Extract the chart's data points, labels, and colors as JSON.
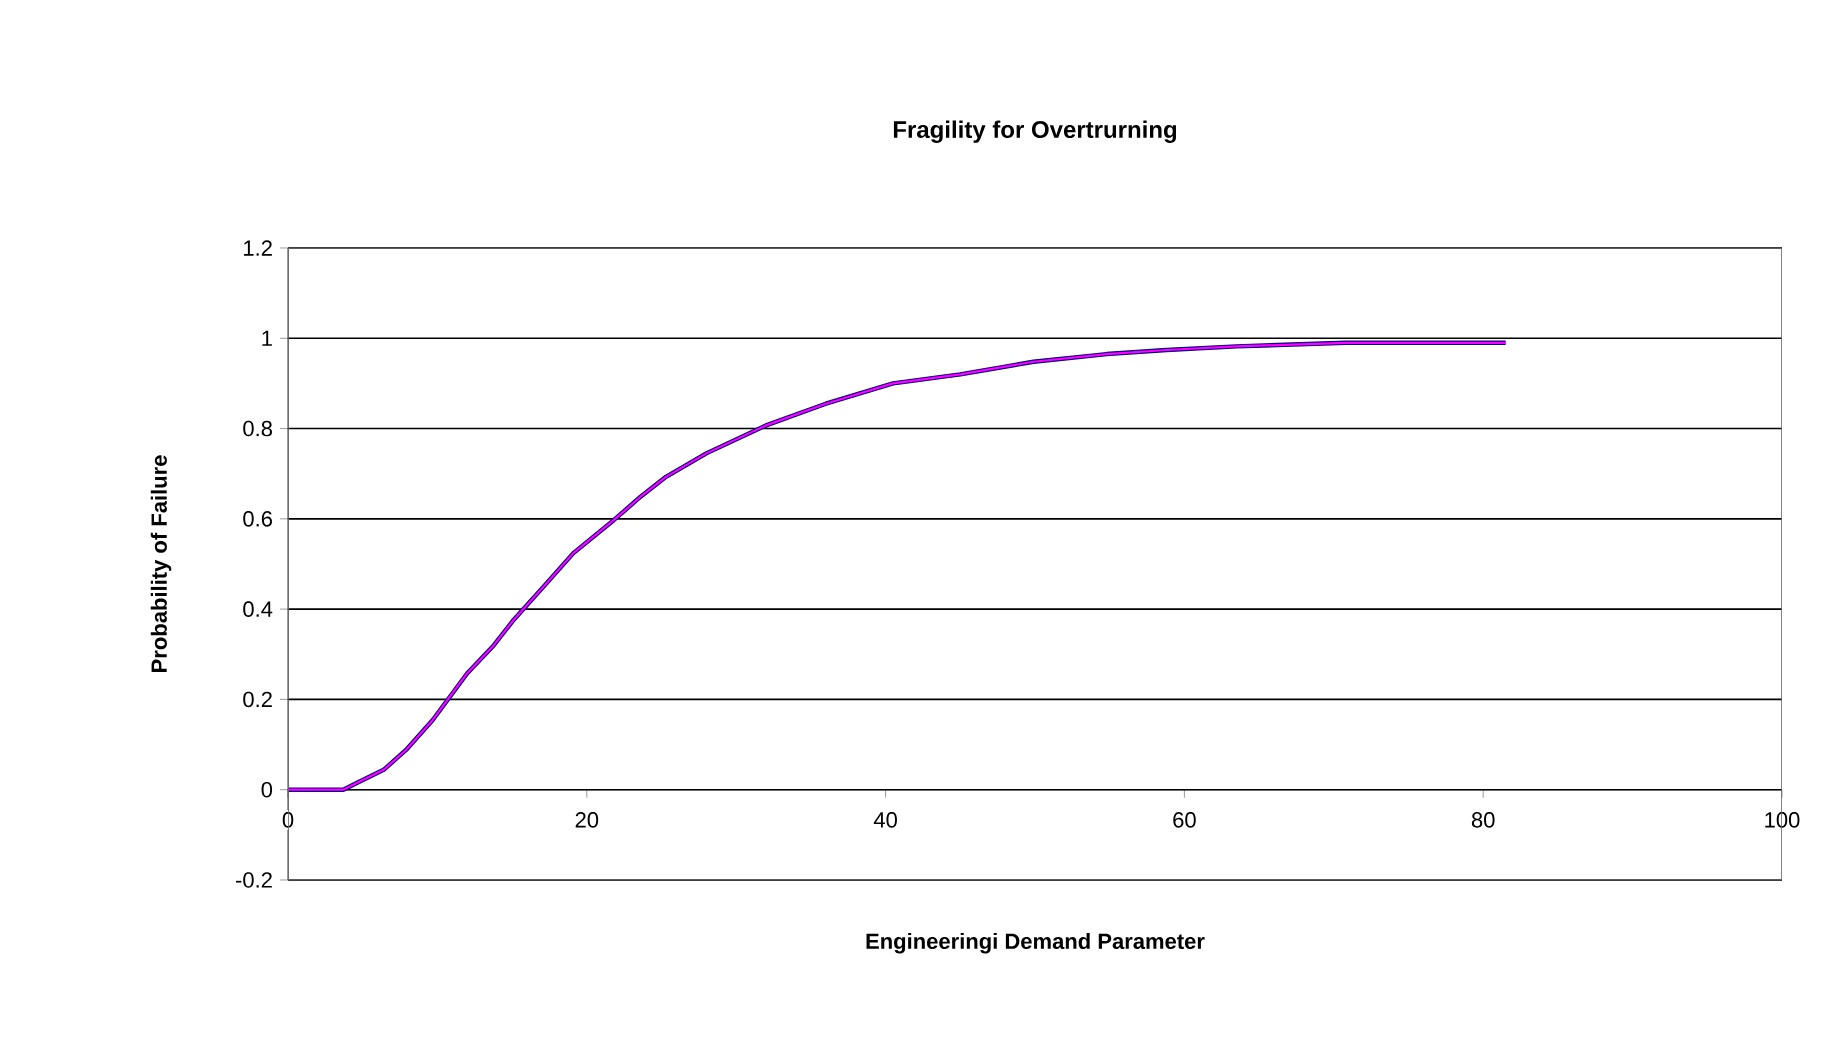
{
  "chart_data": {
    "type": "line",
    "title": "Fragility for Overtrurning",
    "xlabel": "Engineeringi Demand Parameter",
    "ylabel": "Probability of Failure",
    "xlim": [
      0,
      100
    ],
    "xticks": [
      0,
      20,
      40,
      60,
      80,
      100
    ],
    "ylim": [
      -0.2,
      1.2
    ],
    "yticks": [
      -0.2,
      0,
      0.2,
      0.4,
      0.6,
      0.8,
      1,
      1.2
    ],
    "grid": "y",
    "x": [
      0,
      3.7,
      4.6,
      6.4,
      7.9,
      9.7,
      12,
      13.7,
      15.1,
      17.3,
      19.1,
      21.8,
      23.6,
      25.3,
      28,
      32,
      36,
      40.5,
      45,
      49.9,
      54.8,
      58.8,
      63.5,
      70.8,
      81.5
    ],
    "series": [
      {
        "color": "#000080",
        "values": [
          0,
          0,
          0.015,
          0.044,
          0.088,
          0.155,
          0.258,
          0.317,
          0.376,
          0.457,
          0.524,
          0.597,
          0.649,
          0.693,
          0.745,
          0.807,
          0.855,
          0.9,
          0.92,
          0.948,
          0.965,
          0.974,
          0.982,
          0.99,
          0.99
        ]
      },
      {
        "color": "#ff00ff",
        "values": [
          0,
          0,
          0.015,
          0.044,
          0.088,
          0.155,
          0.258,
          0.317,
          0.376,
          0.457,
          0.524,
          0.597,
          0.649,
          0.693,
          0.745,
          0.807,
          0.855,
          0.9,
          0.92,
          0.948,
          0.965,
          0.974,
          0.982,
          0.99,
          0.99
        ]
      }
    ]
  }
}
